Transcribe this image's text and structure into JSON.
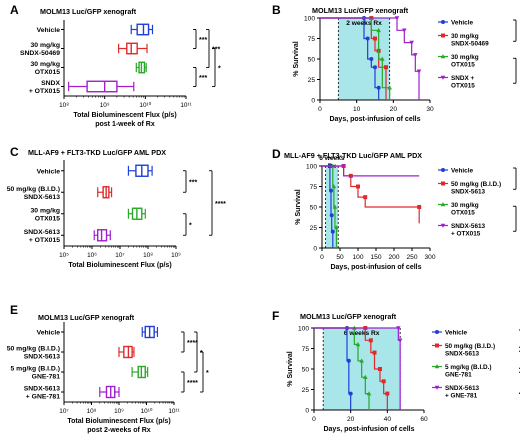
{
  "colors": {
    "blue": "#1f3fd6",
    "red": "#e02a2a",
    "green": "#2aa82a",
    "purple": "#a020d0",
    "rx_shade": "#a8e6ea",
    "axis": "#000000"
  },
  "chart_data": [
    {
      "panel": "A",
      "type": "boxplot",
      "orientation": "horizontal",
      "title": "MOLM13 Luc/GFP xenograft",
      "xlabel": "Total Bioluminescent Flux (p/s)",
      "xlabel2": "post 1-week of Rx",
      "xscale": "log",
      "xlim": [
        100000000.0,
        100000000000.0
      ],
      "xticks": [
        "10⁸",
        "10⁹",
        "10¹⁰",
        "10¹¹"
      ],
      "groups": [
        {
          "label": [
            "Vehicle"
          ],
          "color": "blue",
          "min": 4500000000.0,
          "q1": 6300000000.0,
          "median": 9000000000.0,
          "q3": 12000000000.0,
          "max": 15000000000.0
        },
        {
          "label": [
            "30 mg/kg",
            "SNDX-50469"
          ],
          "color": "red",
          "min": 2200000000.0,
          "q1": 3500000000.0,
          "median": 4500000000.0,
          "q3": 6300000000.0,
          "max": 11000000000.0
        },
        {
          "label": [
            "30 mg/kg",
            "OTX015"
          ],
          "color": "green",
          "min": 6000000000.0,
          "q1": 7000000000.0,
          "median": 8000000000.0,
          "q3": 9500000000.0,
          "max": 10500000000.0
        },
        {
          "label": [
            "SNDX",
            "+ OTX015"
          ],
          "color": "purple",
          "min": 130000000.0,
          "q1": 370000000.0,
          "median": 1000000000.0,
          "q3": 2000000000.0,
          "max": 5200000000.0
        }
      ],
      "significance": [
        {
          "groups": [
            0,
            1
          ],
          "label": "***"
        },
        {
          "groups": [
            0,
            2
          ],
          "label": "***"
        },
        {
          "groups": [
            2,
            3
          ],
          "label": "***"
        },
        {
          "groups": [
            1,
            3
          ],
          "label": "*"
        }
      ]
    },
    {
      "panel": "B",
      "type": "line",
      "subtype": "survival",
      "title": "MOLM13 Luc/GFP xenograft",
      "rx_label": "2 weeks Rx",
      "rx_range": [
        5,
        19
      ],
      "xlabel": "Days, post-infusion of cells",
      "ylabel": "% Survival",
      "xlim": [
        0,
        30
      ],
      "xticks": [
        0,
        10,
        20,
        30
      ],
      "ylim": [
        0,
        100
      ],
      "yticks": [
        0,
        25,
        50,
        75,
        100
      ],
      "series": [
        {
          "name": [
            "Vehicle"
          ],
          "color": "blue",
          "x": [
            0,
            12,
            13,
            14,
            15,
            16
          ],
          "y": [
            100,
            75,
            50,
            40,
            15,
            0
          ]
        },
        {
          "name": [
            "30 mg/kg",
            "SNDX-50469"
          ],
          "color": "red",
          "x": [
            0,
            14,
            15,
            16,
            18
          ],
          "y": [
            100,
            75,
            60,
            40,
            0
          ]
        },
        {
          "name": [
            "30 mg/kg",
            "OTX015"
          ],
          "color": "green",
          "x": [
            0,
            14,
            16,
            17,
            19
          ],
          "y": [
            100,
            85,
            50,
            15,
            0
          ]
        },
        {
          "name": [
            "SNDX +",
            "OTX015"
          ],
          "color": "purple",
          "x": [
            0,
            21,
            23,
            25,
            26,
            27
          ],
          "y": [
            100,
            85,
            70,
            55,
            35,
            0
          ]
        }
      ],
      "significance": [
        {
          "groups": [
            0,
            1
          ],
          "label": "***"
        },
        {
          "groups": [
            2,
            3
          ],
          "label": "***"
        },
        {
          "groups": [
            0,
            3
          ],
          "label": "****"
        }
      ]
    },
    {
      "panel": "C",
      "type": "boxplot",
      "orientation": "horizontal",
      "title": "MLL-AF9 + FLT3-TKD Luc/GFP AML PDX",
      "xlabel": "Total Bioluminescent Flux (p/s)",
      "xscale": "log",
      "xlim": [
        100000.0,
        1000000000.0
      ],
      "xticks": [
        "10⁵",
        "10⁶",
        "10⁷",
        "10⁸",
        "10⁹"
      ],
      "groups": [
        {
          "label": [
            "Vehicle"
          ],
          "color": "blue",
          "min": 20000000.0,
          "q1": 37000000.0,
          "median": 60000000.0,
          "q3": 100000000.0,
          "max": 140000000.0
        },
        {
          "label": [
            "50 mg/kg (B.I.D.)",
            "SNDX-5613"
          ],
          "color": "red",
          "min": 1600000.0,
          "q1": 2500000.0,
          "median": 3200000.0,
          "q3": 4000000.0,
          "max": 5000000.0
        },
        {
          "label": [
            "30 mg/kg",
            "OTX015"
          ],
          "color": "green",
          "min": 20000000.0,
          "q1": 28000000.0,
          "median": 40000000.0,
          "q3": 60000000.0,
          "max": 80000000.0
        },
        {
          "label": [
            "SNDX-5613",
            "+ OTX015"
          ],
          "color": "purple",
          "min": 1200000.0,
          "q1": 1600000.0,
          "median": 2200000.0,
          "q3": 3300000.0,
          "max": 4500000.0
        }
      ],
      "significance": [
        {
          "groups": [
            0,
            1
          ],
          "label": "***"
        },
        {
          "groups": [
            2,
            3
          ],
          "label": "*"
        },
        {
          "groups": [
            0,
            3
          ],
          "label": "****"
        }
      ]
    },
    {
      "panel": "D",
      "type": "line",
      "subtype": "survival",
      "title": "MLL-AF9 + FLT3-TKD Luc/GFP AML PDX",
      "rx_label": [
        "6 weeks",
        "Rx"
      ],
      "rx_range": [
        10,
        45
      ],
      "xlabel": "Days, post-infusion of cells",
      "ylabel": "% Survival",
      "xlim": [
        0,
        300
      ],
      "xticks": [
        0,
        50,
        100,
        150,
        200,
        250,
        300
      ],
      "ylim": [
        0,
        100
      ],
      "yticks": [
        0,
        25,
        50,
        75,
        100
      ],
      "series": [
        {
          "name": [
            "Vehicle"
          ],
          "color": "blue",
          "x": [
            0,
            22,
            25,
            27,
            30
          ],
          "y": [
            100,
            70,
            40,
            20,
            0
          ]
        },
        {
          "name": [
            "50 mg/kg (B.I.D.)",
            "SNDX-5613"
          ],
          "color": "red",
          "x": [
            0,
            60,
            80,
            100,
            120,
            270
          ],
          "y": [
            100,
            88,
            75,
            62,
            50,
            30
          ]
        },
        {
          "name": [
            "30 mg/kg",
            "OTX015"
          ],
          "color": "green",
          "x": [
            0,
            30,
            33,
            36,
            40
          ],
          "y": [
            100,
            75,
            50,
            25,
            0
          ]
        },
        {
          "name": [
            "SNDX-5613",
            "+ OTX015"
          ],
          "color": "purple",
          "x": [
            0,
            60
          ],
          "y": [
            100,
            88
          ]
        }
      ],
      "significance": [
        {
          "groups": [
            0,
            1
          ],
          "label": "***"
        },
        {
          "groups": [
            2,
            3
          ],
          "label": "**"
        },
        {
          "groups": [
            0,
            3
          ],
          "label": "****"
        }
      ]
    },
    {
      "panel": "E",
      "type": "boxplot",
      "orientation": "horizontal",
      "title": "MOLM13 Luc/GFP xenograft",
      "xlabel": "Total Bioluminescent Flux (p/s)",
      "xlabel2": "post 2-weeks of Rx",
      "xscale": "log",
      "xlim": [
        10000000.0,
        100000000000.0
      ],
      "xticks": [
        "10⁷",
        "10⁸",
        "10⁹",
        "10¹⁰",
        "10¹¹"
      ],
      "groups": [
        {
          "label": [
            "Vehicle"
          ],
          "color": "blue",
          "min": 7000000000.0,
          "q1": 9000000000.0,
          "median": 13000000000.0,
          "q3": 19000000000.0,
          "max": 25000000000.0
        },
        {
          "label": [
            "50 mg/kg (B.I.D.)",
            "SNDX-5613"
          ],
          "color": "red",
          "min": 1000000000.0,
          "q1": 1500000000.0,
          "median": 2200000000.0,
          "q3": 3000000000.0,
          "max": 3500000000.0
        },
        {
          "label": [
            "5 mg/kg (B.I.D.)",
            "GNE-781"
          ],
          "color": "green",
          "min": 3000000000.0,
          "q1": 5000000000.0,
          "median": 6500000000.0,
          "q3": 9000000000.0,
          "max": 11000000000.0
        },
        {
          "label": [
            "SNDX-5613",
            "+ GNE-781"
          ],
          "color": "purple",
          "min": 200000000.0,
          "q1": 350000000.0,
          "median": 500000000.0,
          "q3": 700000000.0,
          "max": 1000000000.0
        }
      ],
      "significance": [
        {
          "groups": [
            0,
            1
          ],
          "label": "****"
        },
        {
          "groups": [
            0,
            2
          ],
          "label": "*"
        },
        {
          "groups": [
            2,
            3
          ],
          "label": "****"
        },
        {
          "groups": [
            1,
            3
          ],
          "label": "*"
        }
      ]
    },
    {
      "panel": "F",
      "type": "line",
      "subtype": "survival",
      "title": "MOLM13 Luc/GFP xenograft",
      "rx_label": "6 weeks Rx",
      "rx_range": [
        5,
        47
      ],
      "xlabel": "Days, post-infusion of cells",
      "ylabel": "% Survival",
      "xlim": [
        0,
        60
      ],
      "xticks": [
        0,
        20,
        40,
        60
      ],
      "ylim": [
        0,
        100
      ],
      "yticks": [
        0,
        25,
        50,
        75,
        100
      ],
      "series": [
        {
          "name": [
            "Vehicle"
          ],
          "color": "blue",
          "x": [
            0,
            18,
            19,
            20
          ],
          "y": [
            100,
            60,
            20,
            0
          ]
        },
        {
          "name": [
            "50 mg/kg (B.I.D.)",
            "SNDX-5613"
          ],
          "color": "red",
          "x": [
            0,
            28,
            31,
            33,
            36,
            38,
            40
          ],
          "y": [
            100,
            85,
            70,
            50,
            35,
            20,
            0
          ]
        },
        {
          "name": [
            "5 mg/kg (B.I.D.)",
            "GNE-781"
          ],
          "color": "green",
          "x": [
            0,
            22,
            24,
            26,
            28,
            30
          ],
          "y": [
            100,
            80,
            60,
            40,
            20,
            0
          ]
        },
        {
          "name": [
            "SNDX-5613",
            "+ GNE-781"
          ],
          "color": "purple",
          "x": [
            0,
            46,
            47
          ],
          "y": [
            100,
            85,
            0
          ]
        }
      ],
      "significance": [
        {
          "groups": [
            0,
            2
          ],
          "label": "****"
        },
        {
          "groups": [
            1,
            3
          ],
          "label": "****"
        },
        {
          "groups": [
            0,
            1
          ],
          "label": "****"
        },
        {
          "groups": [
            2,
            3
          ],
          "label": "****"
        },
        {
          "groups": [
            0,
            3
          ],
          "label": "****"
        }
      ]
    }
  ]
}
